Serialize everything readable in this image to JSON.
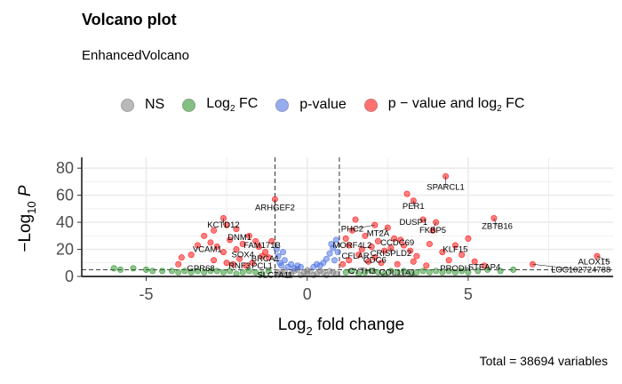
{
  "chart_data": {
    "type": "scatter",
    "title": "Volcano plot",
    "subtitle": "EnhancedVolcano",
    "caption": "Total = 38694 variables",
    "xlabel": {
      "main": "Log",
      "sub": "2",
      "rest": " fold change"
    },
    "ylabel": {
      "pre": "−Log",
      "sub": "10",
      "rest": " P"
    },
    "xlim": [
      -7,
      9.5
    ],
    "ylim": [
      0,
      88
    ],
    "x_ticks": [
      {
        "v": -5,
        "label": "-5"
      },
      {
        "v": 0,
        "label": "0"
      },
      {
        "v": 5,
        "label": "5"
      }
    ],
    "y_ticks": [
      {
        "v": 0,
        "label": "0"
      },
      {
        "v": 20,
        "label": "20"
      },
      {
        "v": 40,
        "label": "40"
      },
      {
        "v": 60,
        "label": "60"
      },
      {
        "v": 80,
        "label": "80"
      }
    ],
    "fc_cutoff": 1,
    "p_cutoff_neglog10": 5,
    "grid": true,
    "legend_position": "top",
    "legend": [
      {
        "key": "NS",
        "text": "NS",
        "color": "#808080"
      },
      {
        "key": "FC",
        "text": "Log",
        "sub": "2",
        "rest": " FC",
        "color": "#228B22"
      },
      {
        "key": "P",
        "text": "p-value",
        "color": "#4169E1"
      },
      {
        "key": "PFC",
        "text": "p − value and log",
        "sub": "2",
        "rest": " FC",
        "color": "#FF0000"
      }
    ],
    "labels": [
      {
        "name": "SPARCL1",
        "x": 4.3,
        "y": 74,
        "dx": 4.3,
        "dy": 66
      },
      {
        "name": "ARHGEF2",
        "x": -1.0,
        "y": 57,
        "dx": -1.0,
        "dy": 51
      },
      {
        "name": "PER1",
        "x": 3.3,
        "y": 56,
        "dx": 3.3,
        "dy": 52
      },
      {
        "name": "KCTD12",
        "x": -2.6,
        "y": 43,
        "dx": -2.6,
        "dy": 38
      },
      {
        "name": "DUSP1",
        "x": 3.6,
        "y": 42,
        "dx": 3.3,
        "dy": 40
      },
      {
        "name": "ZBTB16",
        "x": 5.8,
        "y": 43,
        "dx": 5.9,
        "dy": 37
      },
      {
        "name": "PHC2",
        "x": 2.1,
        "y": 38,
        "dx": 1.4,
        "dy": 35
      },
      {
        "name": "MT2A",
        "x": 2.5,
        "y": 36,
        "dx": 2.2,
        "dy": 32
      },
      {
        "name": "FKBP5",
        "x": 4.0,
        "y": 40,
        "dx": 3.9,
        "dy": 34
      },
      {
        "name": "DNM1",
        "x": -1.8,
        "y": 30,
        "dx": -2.1,
        "dy": 29
      },
      {
        "name": "CCDC69",
        "x": 2.9,
        "y": 27,
        "dx": 2.8,
        "dy": 25
      },
      {
        "name": "FAM171B",
        "x": -1.4,
        "y": 25,
        "dx": -1.4,
        "dy": 23
      },
      {
        "name": "MORF4L2",
        "x": 1.5,
        "y": 23,
        "dx": 1.4,
        "dy": 23
      },
      {
        "name": "VCAM1",
        "x": -3.4,
        "y": 23,
        "dx": -3.1,
        "dy": 20
      },
      {
        "name": "KLF15",
        "x": 4.6,
        "y": 23,
        "dx": 4.6,
        "dy": 20
      },
      {
        "name": "CRISPLD2",
        "x": 2.6,
        "y": 21,
        "dx": 2.6,
        "dy": 17
      },
      {
        "name": "SOX4",
        "x": -2.3,
        "y": 18,
        "dx": -2.0,
        "dy": 16
      },
      {
        "name": "CFLAR",
        "x": 1.4,
        "y": 16,
        "dx": 1.5,
        "dy": 15
      },
      {
        "name": "BRCA1",
        "x": -1.4,
        "y": 15,
        "dx": -1.3,
        "dy": 13
      },
      {
        "name": "CDC6",
        "x": 2.1,
        "y": 14,
        "dx": 2.1,
        "dy": 12
      },
      {
        "name": "PCL1",
        "x": -1.4,
        "y": 10,
        "dx": -1.4,
        "dy": 8
      },
      {
        "name": "RNF3",
        "x": -2.1,
        "y": 9,
        "dx": -2.1,
        "dy": 8
      },
      {
        "name": "GPR68",
        "x": -3.4,
        "y": 7,
        "dx": -3.3,
        "dy": 6
      },
      {
        "name": "ALOX15",
        "x": 9.0,
        "y": 15,
        "dx": 9.4,
        "dy": 11
      },
      {
        "name": "STEAP4",
        "x": 5.5,
        "y": 8,
        "dx": 5.5,
        "dy": 7
      },
      {
        "name": "PRODH",
        "x": 4.6,
        "y": 7,
        "dx": 4.6,
        "dy": 6
      },
      {
        "name": "LOC102724788",
        "x": 7.0,
        "y": 9,
        "dx": 8.5,
        "dy": 5
      },
      {
        "name": "CYTH3",
        "x": 1.5,
        "y": 5,
        "dx": 1.7,
        "dy": 4
      },
      {
        "name": "COL11A1",
        "x": 2.6,
        "y": 4,
        "dx": 2.8,
        "dy": 3
      },
      {
        "name": "SLC7A11",
        "x": -1.3,
        "y": 4,
        "dx": -1.0,
        "dy": 1
      }
    ],
    "series": [
      {
        "name": "NS",
        "color": "#808080",
        "points": [
          [
            -0.9,
            3
          ],
          [
            -0.7,
            4
          ],
          [
            -0.5,
            2
          ],
          [
            -0.3,
            5
          ],
          [
            -0.1,
            3
          ],
          [
            0.1,
            4
          ],
          [
            0.3,
            2
          ],
          [
            0.5,
            3
          ],
          [
            0.7,
            4
          ],
          [
            0.9,
            2
          ],
          [
            -0.6,
            1
          ],
          [
            -0.2,
            1
          ],
          [
            0.2,
            1
          ],
          [
            0.6,
            1
          ],
          [
            -0.8,
            2
          ],
          [
            0.8,
            3
          ],
          [
            -0.4,
            4
          ],
          [
            0.4,
            4
          ],
          [
            0,
            2
          ],
          [
            0,
            4.5
          ]
        ]
      },
      {
        "name": "Log2 FC",
        "color": "#228B22",
        "points": [
          [
            -6,
            6
          ],
          [
            -5.8,
            5
          ],
          [
            -5.4,
            6
          ],
          [
            -5,
            5
          ],
          [
            -4.8,
            4
          ],
          [
            -4.5,
            4
          ],
          [
            -4.2,
            4
          ],
          [
            -4,
            3
          ],
          [
            -3.8,
            4
          ],
          [
            -3.6,
            3
          ],
          [
            -3.4,
            4
          ],
          [
            -3.2,
            3
          ],
          [
            -3,
            4
          ],
          [
            -2.8,
            4
          ],
          [
            -2.6,
            3
          ],
          [
            -2.4,
            4
          ],
          [
            -2.2,
            2
          ],
          [
            -2,
            3
          ],
          [
            -1.8,
            4
          ],
          [
            -1.6,
            3
          ],
          [
            -1.4,
            2
          ],
          [
            -1.2,
            4
          ],
          [
            1.2,
            3
          ],
          [
            1.4,
            4
          ],
          [
            1.6,
            2
          ],
          [
            1.8,
            3
          ],
          [
            2,
            4
          ],
          [
            2.2,
            3
          ],
          [
            2.4,
            2
          ],
          [
            2.6,
            4
          ],
          [
            2.8,
            3
          ],
          [
            3,
            4
          ],
          [
            3.2,
            2
          ],
          [
            3.4,
            3
          ],
          [
            3.6,
            4
          ],
          [
            3.8,
            3
          ],
          [
            4,
            4
          ],
          [
            4.2,
            3
          ],
          [
            4.4,
            4
          ],
          [
            4.6,
            3
          ],
          [
            4.8,
            4
          ],
          [
            5,
            3
          ],
          [
            5.3,
            4
          ],
          [
            5.6,
            5
          ],
          [
            6,
            4
          ],
          [
            6.4,
            5
          ]
        ]
      },
      {
        "name": "p-value",
        "color": "#4169E1",
        "points": [
          [
            -0.95,
            20
          ],
          [
            -0.9,
            15
          ],
          [
            -0.85,
            10
          ],
          [
            -0.8,
            8
          ],
          [
            -0.7,
            12
          ],
          [
            -0.6,
            7
          ],
          [
            -0.5,
            9
          ],
          [
            -0.4,
            6
          ],
          [
            -0.3,
            8
          ],
          [
            -0.2,
            7
          ],
          [
            0.2,
            7
          ],
          [
            0.3,
            9
          ],
          [
            0.4,
            8
          ],
          [
            0.5,
            10
          ],
          [
            0.6,
            13
          ],
          [
            0.7,
            17
          ],
          [
            0.8,
            21
          ],
          [
            0.9,
            27
          ],
          [
            0.95,
            18
          ],
          [
            0.85,
            12
          ],
          [
            0.75,
            24
          ],
          [
            -0.75,
            18
          ]
        ]
      },
      {
        "name": "p-value and log2 FC",
        "color": "#FF0000",
        "points": [
          [
            4.3,
            74
          ],
          [
            3.3,
            56
          ],
          [
            3.1,
            61
          ],
          [
            -1,
            57
          ],
          [
            -2.6,
            43
          ],
          [
            -2.5,
            38
          ],
          [
            -2.9,
            34
          ],
          [
            -2.2,
            35
          ],
          [
            -3.4,
            23
          ],
          [
            -3.2,
            30
          ],
          [
            -3,
            25
          ],
          [
            -2.8,
            22
          ],
          [
            -2.6,
            18
          ],
          [
            -2.4,
            27
          ],
          [
            -2.2,
            20
          ],
          [
            -2,
            24
          ],
          [
            -1.8,
            30
          ],
          [
            -1.6,
            26
          ],
          [
            -1.5,
            22
          ],
          [
            -1.3,
            18
          ],
          [
            -1.2,
            14
          ],
          [
            -1.1,
            26
          ],
          [
            -2.9,
            12
          ],
          [
            -2.5,
            10
          ],
          [
            -2.1,
            13
          ],
          [
            -1.7,
            10
          ],
          [
            -3.6,
            16
          ],
          [
            -4,
            9
          ],
          [
            -3.9,
            14
          ],
          [
            -1.4,
            15
          ],
          [
            -1.9,
            8
          ],
          [
            -2.3,
            9
          ],
          [
            1.2,
            28
          ],
          [
            1.4,
            34
          ],
          [
            1.5,
            42
          ],
          [
            1.3,
            23
          ],
          [
            1.6,
            16
          ],
          [
            1.8,
            30
          ],
          [
            2,
            22
          ],
          [
            2.1,
            38
          ],
          [
            2.2,
            26
          ],
          [
            2.4,
            19
          ],
          [
            2.5,
            36
          ],
          [
            2.7,
            28
          ],
          [
            2.9,
            27
          ],
          [
            3,
            23
          ],
          [
            3.2,
            19
          ],
          [
            3.4,
            15
          ],
          [
            3.6,
            42
          ],
          [
            3.8,
            24
          ],
          [
            4,
            40
          ],
          [
            4.2,
            18
          ],
          [
            4.4,
            12
          ],
          [
            4.6,
            23
          ],
          [
            4.8,
            16
          ],
          [
            5,
            28
          ],
          [
            5.8,
            43
          ],
          [
            5.5,
            8
          ],
          [
            5.2,
            11
          ],
          [
            7,
            9
          ],
          [
            9,
            15
          ],
          [
            2.6,
            21
          ],
          [
            2.1,
            14
          ],
          [
            1.9,
            11
          ],
          [
            2.3,
            10
          ],
          [
            2.8,
            9
          ],
          [
            3.3,
            11
          ],
          [
            3.7,
            8
          ],
          [
            1.3,
            12
          ],
          [
            1.7,
            20
          ],
          [
            3.9,
            34
          ],
          [
            1.1,
            9
          ]
        ]
      }
    ]
  }
}
